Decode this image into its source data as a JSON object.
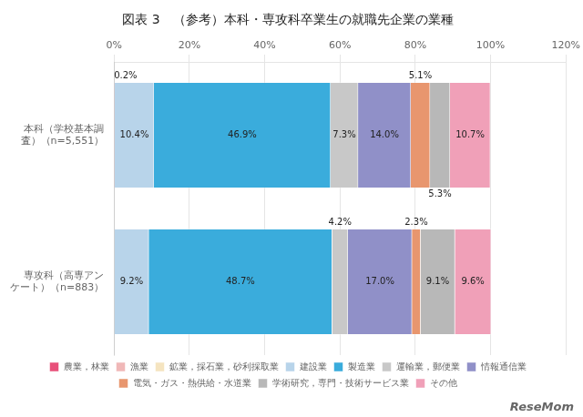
{
  "chart_data": {
    "type": "bar",
    "orientation": "horizontal",
    "stacked": true,
    "title": "図表 3　（参考）本科・専攻科卒業生の就職先企業の業種",
    "categories": [
      "本科（学校基本調\n査）（n=5,551）",
      "専攻科（高専アン\nケート）（n=883）"
    ],
    "series": [
      {
        "name": "農業，林業",
        "color": "#e8507a",
        "values": [
          0.2,
          0.0
        ],
        "value_labels": [
          "0.2%",
          null
        ]
      },
      {
        "name": "漁業",
        "color": "#f0b8b8",
        "values": [
          null,
          null
        ],
        "value_labels": [
          null,
          null
        ]
      },
      {
        "name": "鉱業，採石業，砂利採取業",
        "color": "#f5e4c0",
        "values": [
          null,
          null
        ],
        "value_labels": [
          null,
          null
        ]
      },
      {
        "name": "建設業",
        "color": "#b8d4ea",
        "values": [
          10.4,
          9.2
        ],
        "value_labels": [
          "10.4%",
          "9.2%"
        ]
      },
      {
        "name": "製造業",
        "color": "#3aacdc",
        "values": [
          46.9,
          48.7
        ],
        "value_labels": [
          "46.9%",
          "48.7%"
        ]
      },
      {
        "name": "運輸業，郵便業",
        "color": "#c8c8c8",
        "values": [
          7.3,
          4.2
        ],
        "value_labels": [
          "7.3%",
          "4.2%"
        ]
      },
      {
        "name": "情報通信業",
        "color": "#9090c8",
        "values": [
          14.0,
          17.0
        ],
        "value_labels": [
          "14.0%",
          "17.0%"
        ]
      },
      {
        "name": "電気・ガス・熱供給・水道業",
        "color": "#e8966e",
        "values": [
          5.1,
          2.3
        ],
        "value_labels": [
          "5.1%",
          "2.3%"
        ]
      },
      {
        "name": "学術研究，専門・技術サービス業",
        "color": "#b8b8b8",
        "values": [
          5.3,
          9.1
        ],
        "value_labels": [
          "5.3%",
          "9.1%"
        ]
      },
      {
        "name": "その他",
        "color": "#f0a0b8",
        "values": [
          10.7,
          9.6
        ],
        "value_labels": [
          "10.7%",
          "9.6%"
        ]
      }
    ],
    "xlim": [
      0,
      120
    ],
    "xticks": [
      {
        "value": 0,
        "label": "0%"
      },
      {
        "value": 20,
        "label": "20%"
      },
      {
        "value": 40,
        "label": "40%"
      },
      {
        "value": 60,
        "label": "60%"
      },
      {
        "value": 80,
        "label": "80%"
      },
      {
        "value": 100,
        "label": "100%"
      },
      {
        "value": 120,
        "label": "120%"
      }
    ],
    "grid": true,
    "legend": "bottom",
    "data_labels": true,
    "annotations": [
      "ReseMom"
    ]
  }
}
